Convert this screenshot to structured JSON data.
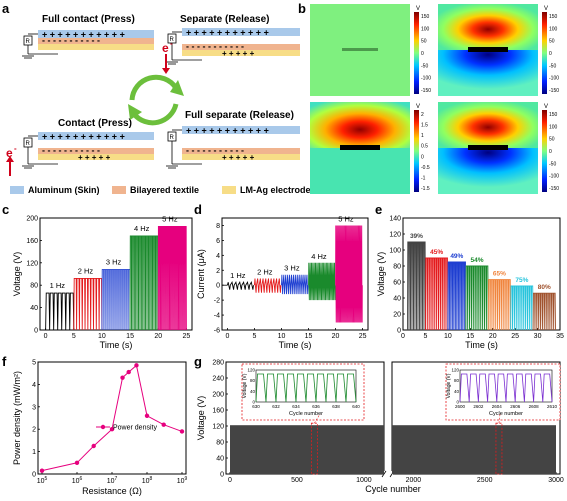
{
  "panels": {
    "a": {
      "label": "a",
      "states": [
        "Full contact (Press)",
        "Separate (Release)",
        "Contact (Press)",
        "Full separate (Release)"
      ],
      "electron": "e",
      "electron_sup": "-",
      "legend": [
        {
          "name": "Aluminum (Skin)",
          "color": "#a9c9ea"
        },
        {
          "name": "Bilayered textile",
          "color": "#f0b48f"
        },
        {
          "name": "LM-Ag electrode",
          "color": "#f7dd87"
        }
      ],
      "resistor": "R"
    },
    "b": {
      "label": "b",
      "unit": "V",
      "colorbars": [
        {
          "ticks": [
            "150",
            "100",
            "50",
            "0",
            "-50",
            "-100",
            "-150"
          ]
        },
        {
          "ticks": [
            "150",
            "100",
            "50",
            "0",
            "-50",
            "-100",
            "-150"
          ]
        },
        {
          "ticks": [
            "2",
            "1.5",
            "1",
            "0.5",
            "0",
            "-0.5",
            "-1",
            "-1.5"
          ]
        },
        {
          "ticks": [
            "150",
            "100",
            "50",
            "0",
            "-50",
            "-100",
            "-150"
          ]
        }
      ]
    },
    "c": {
      "label": "c",
      "freq_labels": [
        "1 Hz",
        "2 Hz",
        "3 Hz",
        "4 Hz",
        "5 Hz"
      ],
      "xticks": [
        "0",
        "5",
        "10",
        "15",
        "20",
        "25"
      ],
      "yticks": [
        "0",
        "40",
        "80",
        "120",
        "160",
        "200"
      ]
    },
    "d": {
      "label": "d",
      "freq_labels": [
        "1 Hz",
        "2 Hz",
        "3 Hz",
        "4 Hz",
        "5 Hz"
      ],
      "xticks": [
        "0",
        "5",
        "10",
        "15",
        "20",
        "25"
      ],
      "yticks": [
        "-6",
        "-4",
        "-2",
        "0",
        "2",
        "4",
        "6",
        "8"
      ]
    },
    "e": {
      "label": "e",
      "xticks": [
        "0",
        "5",
        "10",
        "15",
        "20",
        "25",
        "30",
        "35"
      ],
      "yticks": [
        "0",
        "20",
        "40",
        "60",
        "80",
        "100",
        "120",
        "140"
      ]
    },
    "f": {
      "label": "f",
      "legend": "Power density"
    },
    "g": {
      "label": "g",
      "xticks": [
        "0",
        "500",
        "1000",
        "2000",
        "2500",
        "3000"
      ],
      "yticks": [
        "0",
        "40",
        "80",
        "120",
        "160",
        "200",
        "240",
        "280"
      ],
      "inset1": {
        "xticks": [
          "630",
          "632",
          "634",
          "636",
          "638",
          "640"
        ],
        "yticks": [
          "0",
          "40",
          "80",
          "120"
        ],
        "xlabel": "Cycle number",
        "ylabel": "Voltage (V)"
      },
      "inset2": {
        "xticks": [
          "2600",
          "2602",
          "2604",
          "2606",
          "2608",
          "2610"
        ],
        "yticks": [
          "0",
          "40",
          "80",
          "120"
        ],
        "xlabel": "Cycle number",
        "ylabel": "Voltage (V)"
      }
    }
  },
  "chart_data": [
    {
      "type": "line",
      "panel": "c",
      "xlabel": "Time (s)",
      "ylabel": "Voltage (V)",
      "xlim": [
        -1,
        26
      ],
      "ylim": [
        0,
        200
      ],
      "series": [
        {
          "name": "1 Hz",
          "x_range": [
            0,
            5
          ],
          "peak": 66,
          "color": "#000000"
        },
        {
          "name": "2 Hz",
          "x_range": [
            5,
            10
          ],
          "peak": 92,
          "color": "#e41a1c"
        },
        {
          "name": "3 Hz",
          "x_range": [
            10,
            15
          ],
          "peak": 108,
          "color": "#1f3fd1"
        },
        {
          "name": "4 Hz",
          "x_range": [
            15,
            20
          ],
          "peak": 168,
          "color": "#1a8a2c"
        },
        {
          "name": "5 Hz",
          "x_range": [
            20,
            25
          ],
          "peak": 185,
          "color": "#e6007e"
        }
      ]
    },
    {
      "type": "line",
      "panel": "d",
      "xlabel": "Time (s)",
      "ylabel": "Current (μA)",
      "xlim": [
        -1,
        26
      ],
      "ylim": [
        -6,
        9
      ],
      "series": [
        {
          "name": "1 Hz",
          "x_range": [
            0,
            5
          ],
          "max": 0.4,
          "min": -0.6,
          "color": "#000000"
        },
        {
          "name": "2 Hz",
          "x_range": [
            5,
            10
          ],
          "max": 0.9,
          "min": -1.0,
          "color": "#e41a1c"
        },
        {
          "name": "3 Hz",
          "x_range": [
            10,
            15
          ],
          "max": 1.4,
          "min": -1.2,
          "color": "#1f3fd1"
        },
        {
          "name": "4 Hz",
          "x_range": [
            15,
            20
          ],
          "max": 3.0,
          "min": -2.0,
          "color": "#1a8a2c"
        },
        {
          "name": "5 Hz",
          "x_range": [
            20,
            25
          ],
          "max": 8.0,
          "min": -5.0,
          "color": "#e6007e"
        }
      ]
    },
    {
      "type": "line",
      "panel": "e",
      "xlabel": "Time (s)",
      "ylabel": "Voltage (V)",
      "xlim": [
        0,
        35
      ],
      "ylim": [
        0,
        140
      ],
      "series": [
        {
          "name": "39%",
          "x_range": [
            1,
            5
          ],
          "peak": 110,
          "color": "#444444"
        },
        {
          "name": "45%",
          "x_range": [
            5,
            10
          ],
          "peak": 90,
          "color": "#e41a1c"
        },
        {
          "name": "49%",
          "x_range": [
            10,
            14
          ],
          "peak": 85,
          "color": "#1f3fd1"
        },
        {
          "name": "54%",
          "x_range": [
            14,
            19
          ],
          "peak": 80,
          "color": "#1a8a2c"
        },
        {
          "name": "65%",
          "x_range": [
            19,
            24
          ],
          "peak": 63,
          "color": "#f0843c"
        },
        {
          "name": "75%",
          "x_range": [
            24,
            29
          ],
          "peak": 55,
          "color": "#27c4dc"
        },
        {
          "name": "80%",
          "x_range": [
            29,
            34
          ],
          "peak": 46,
          "color": "#a0522d"
        }
      ]
    },
    {
      "type": "line",
      "panel": "f",
      "xlabel": "Resistance (Ω)",
      "ylabel": "Power density (mW/m²)",
      "xscale": "log",
      "ylim": [
        0,
        5
      ],
      "x": [
        100000,
        1000000,
        3000000,
        10000000,
        20000000,
        30000000,
        50000000,
        100000000,
        300000000,
        1000000000
      ],
      "series": [
        {
          "name": "Power density",
          "values": [
            0.15,
            0.5,
            1.25,
            2.0,
            4.3,
            4.55,
            4.85,
            2.6,
            2.2,
            1.9
          ],
          "color": "#e6007e"
        }
      ]
    },
    {
      "type": "line",
      "panel": "g",
      "xlabel": "Cycle number",
      "ylabel": "Voltage (V)",
      "xlim": [
        0,
        3000
      ],
      "ylim": [
        0,
        280
      ],
      "series": [
        {
          "name": "",
          "x_range": [
            0,
            3000
          ],
          "peak": 122,
          "color": "#444444"
        }
      ]
    }
  ]
}
